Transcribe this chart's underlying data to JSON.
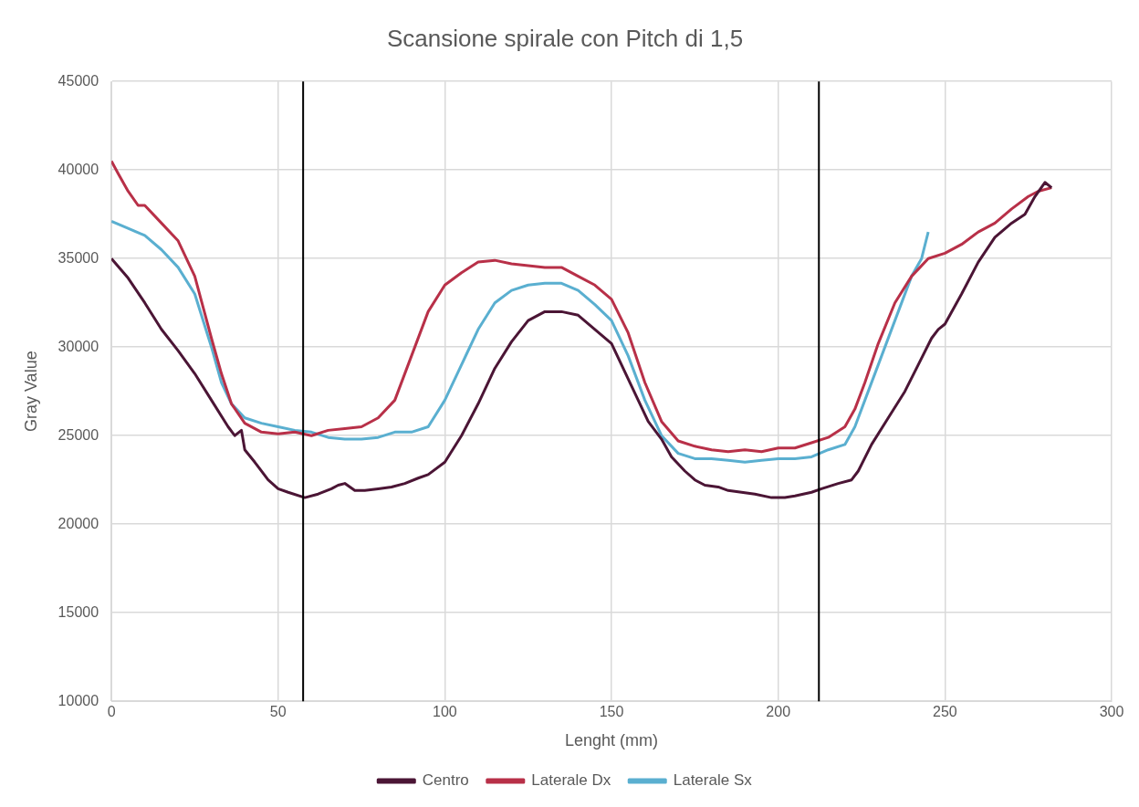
{
  "chart_data": {
    "type": "line",
    "title": "Scansione spirale con Pitch di 1,5",
    "xlabel": "Lenght (mm)",
    "ylabel": "Gray Value",
    "xlim": [
      0,
      300
    ],
    "xticks": [
      0,
      50,
      100,
      150,
      200,
      250,
      300
    ],
    "ylim": [
      10000,
      45000
    ],
    "yticks": [
      10000,
      15000,
      20000,
      25000,
      30000,
      35000,
      40000,
      45000
    ],
    "grid": true,
    "legend": "bottom",
    "marker": "none",
    "line_style": "solid",
    "ref_lines": [
      {
        "axis": "x",
        "value": 57.5,
        "color": "#000000"
      },
      {
        "axis": "x",
        "value": 212.2,
        "color": "#000000"
      }
    ],
    "series": [
      {
        "name": "Centro",
        "color": "#4b1535",
        "x": [
          0,
          5,
          10,
          15,
          20,
          25,
          30,
          35,
          37,
          39,
          40,
          43,
          47,
          50,
          53,
          58,
          62,
          66,
          68,
          70,
          73,
          76,
          80,
          84,
          88,
          92,
          95,
          100,
          105,
          110,
          115,
          120,
          125,
          130,
          135,
          140,
          145,
          150,
          153,
          158,
          161,
          165,
          168,
          172,
          175,
          178,
          182,
          185,
          189,
          193,
          198,
          202,
          205,
          210,
          213,
          218,
          222,
          224,
          228,
          233,
          238,
          242,
          246,
          248,
          250,
          255,
          260,
          265,
          270,
          274,
          277,
          280,
          282
        ],
        "values": [
          35000,
          33900,
          32500,
          31000,
          29800,
          28500,
          27000,
          25500,
          25000,
          25300,
          24200,
          23500,
          22500,
          22000,
          21800,
          21500,
          21700,
          22000,
          22200,
          22300,
          21900,
          21900,
          22000,
          22100,
          22300,
          22600,
          22800,
          23500,
          25000,
          26800,
          28800,
          30300,
          31500,
          32000,
          32000,
          31800,
          31000,
          30200,
          29000,
          27000,
          25800,
          24800,
          23800,
          23000,
          22500,
          22200,
          22100,
          21900,
          21800,
          21700,
          21500,
          21500,
          21600,
          21800,
          22000,
          22300,
          22500,
          23000,
          24500,
          26000,
          27500,
          29000,
          30500,
          31000,
          31300,
          33000,
          34800,
          36200,
          37000,
          37500,
          38500,
          39300,
          39000
        ]
      },
      {
        "name": "Laterale Dx",
        "color": "#b83048",
        "x": [
          0,
          2,
          5,
          8,
          10,
          15,
          20,
          25,
          30,
          33,
          36,
          40,
          45,
          50,
          55,
          60,
          65,
          70,
          75,
          80,
          85,
          90,
          95,
          100,
          105,
          110,
          115,
          120,
          125,
          130,
          135,
          140,
          145,
          150,
          155,
          160,
          165,
          170,
          175,
          180,
          185,
          190,
          195,
          200,
          205,
          210,
          215,
          220,
          223,
          226,
          230,
          235,
          240,
          245,
          250,
          255,
          260,
          265,
          270,
          275,
          278,
          282
        ],
        "values": [
          40500,
          39800,
          38800,
          38000,
          38000,
          37000,
          36000,
          34000,
          30500,
          28500,
          26800,
          25700,
          25200,
          25100,
          25200,
          25000,
          25300,
          25400,
          25500,
          26000,
          27000,
          29500,
          32000,
          33500,
          34200,
          34800,
          34900,
          34700,
          34600,
          34500,
          34500,
          34000,
          33500,
          32700,
          30800,
          28000,
          25800,
          24700,
          24400,
          24200,
          24100,
          24200,
          24100,
          24300,
          24300,
          24600,
          24900,
          25500,
          26500,
          28000,
          30200,
          32500,
          34000,
          35000,
          35300,
          35800,
          36500,
          37000,
          37800,
          38500,
          38800,
          39000
        ]
      },
      {
        "name": "Laterale Sx",
        "color": "#5aafd0",
        "x": [
          0,
          5,
          10,
          15,
          20,
          25,
          30,
          33,
          36,
          40,
          45,
          50,
          55,
          60,
          65,
          70,
          75,
          80,
          85,
          90,
          95,
          100,
          105,
          110,
          115,
          120,
          125,
          130,
          135,
          140,
          145,
          150,
          155,
          160,
          165,
          170,
          175,
          180,
          185,
          190,
          195,
          200,
          205,
          210,
          215,
          220,
          223,
          226,
          230,
          235,
          240,
          243,
          245
        ],
        "values": [
          37100,
          36700,
          36300,
          35500,
          34500,
          33000,
          30000,
          28000,
          26800,
          26000,
          25700,
          25500,
          25300,
          25200,
          24900,
          24800,
          24800,
          24900,
          25200,
          25200,
          25500,
          27000,
          29000,
          31000,
          32500,
          33200,
          33500,
          33600,
          33600,
          33200,
          32400,
          31500,
          29500,
          27000,
          25000,
          24000,
          23700,
          23700,
          23600,
          23500,
          23600,
          23700,
          23700,
          23800,
          24200,
          24500,
          25500,
          27000,
          29000,
          31500,
          34000,
          35000,
          36500
        ]
      }
    ]
  }
}
